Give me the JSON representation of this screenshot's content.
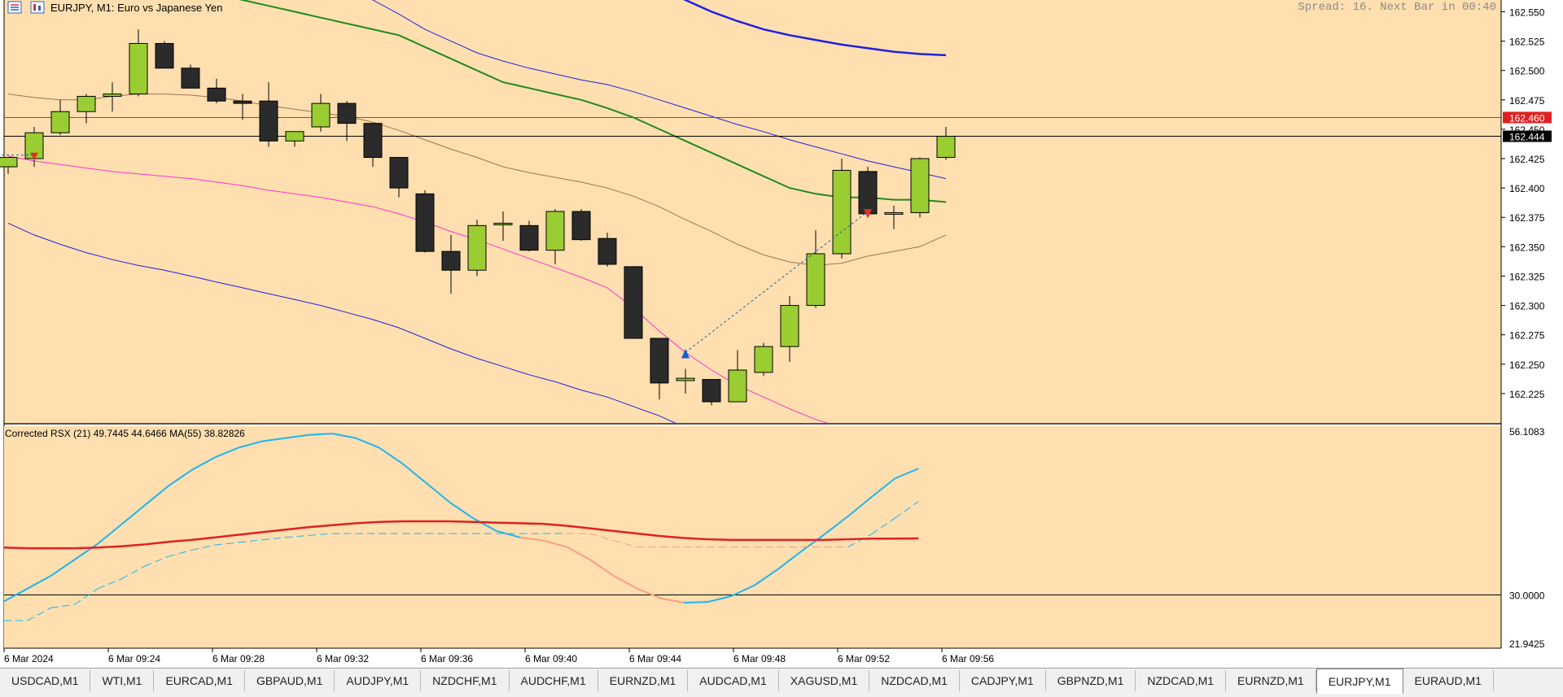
{
  "header": {
    "symbol_title": "EURJPY, M1:  Euro vs Japanese Yen",
    "spread_text": "Spread: 16. Next Bar in 00:40"
  },
  "colors": {
    "background": "#ffdfaf",
    "bull_candle": "#9acd32",
    "bear_candle": "#2b2b2b",
    "brown_ma": "#9b7653",
    "green_ma": "#1f8a1f",
    "blue_band": "#2020e0",
    "magenta_ma": "#ff33cc",
    "rsx_line": "#1eb4f0",
    "rsx_ma": "#e02020",
    "bid_marker": "#e02020"
  },
  "main_panel": {
    "price_min": 162.2,
    "price_max": 162.56,
    "y_ticks": [
      "162.550",
      "162.525",
      "162.500",
      "162.475",
      "162.450",
      "162.425",
      "162.400",
      "162.375",
      "162.350",
      "162.325",
      "162.300",
      "162.275",
      "162.250",
      "162.225"
    ],
    "bid_label": "162.460",
    "last_label": "162.444",
    "bid_value": 162.46,
    "last_value": 162.444
  },
  "indicator_panel": {
    "title": "Corrected RSX (21) 49.7445 44.6466 MA(55) 38.82826",
    "max_label": "56.1083",
    "min_label": "21.9425",
    "level_label": "30.0000",
    "max_value": 56.1083,
    "min_value": 21.9425,
    "level_value": 30.0
  },
  "time_axis": {
    "labels": [
      "6 Mar 2024",
      "6 Mar 09:24",
      "6 Mar 09:28",
      "6 Mar 09:32",
      "6 Mar 09:36",
      "6 Mar 09:40",
      "6 Mar 09:44",
      "6 Mar 09:48",
      "6 Mar 09:52",
      "6 Mar 09:56"
    ]
  },
  "chart_data": {
    "type": "candlestick",
    "candles": [
      {
        "o": 162.418,
        "h": 162.425,
        "l": 162.412,
        "c": 162.426
      },
      {
        "o": 162.425,
        "h": 162.452,
        "l": 162.418,
        "c": 162.447
      },
      {
        "o": 162.447,
        "h": 162.475,
        "l": 162.445,
        "c": 162.465
      },
      {
        "o": 162.465,
        "h": 162.48,
        "l": 162.455,
        "c": 162.478
      },
      {
        "o": 162.478,
        "h": 162.49,
        "l": 162.465,
        "c": 162.48
      },
      {
        "o": 162.48,
        "h": 162.535,
        "l": 162.478,
        "c": 162.523
      },
      {
        "o": 162.523,
        "h": 162.525,
        "l": 162.502,
        "c": 162.502
      },
      {
        "o": 162.502,
        "h": 162.505,
        "l": 162.485,
        "c": 162.485
      },
      {
        "o": 162.485,
        "h": 162.493,
        "l": 162.472,
        "c": 162.474
      },
      {
        "o": 162.474,
        "h": 162.48,
        "l": 162.458,
        "c": 162.472
      },
      {
        "o": 162.474,
        "h": 162.49,
        "l": 162.435,
        "c": 162.44
      },
      {
        "o": 162.44,
        "h": 162.448,
        "l": 162.435,
        "c": 162.448
      },
      {
        "o": 162.452,
        "h": 162.48,
        "l": 162.448,
        "c": 162.472
      },
      {
        "o": 162.472,
        "h": 162.474,
        "l": 162.44,
        "c": 162.455
      },
      {
        "o": 162.455,
        "h": 162.455,
        "l": 162.418,
        "c": 162.426
      },
      {
        "o": 162.426,
        "h": 162.426,
        "l": 162.392,
        "c": 162.4
      },
      {
        "o": 162.395,
        "h": 162.398,
        "l": 162.345,
        "c": 162.346
      },
      {
        "o": 162.346,
        "h": 162.36,
        "l": 162.31,
        "c": 162.33
      },
      {
        "o": 162.33,
        "h": 162.373,
        "l": 162.325,
        "c": 162.368
      },
      {
        "o": 162.37,
        "h": 162.38,
        "l": 162.355,
        "c": 162.37
      },
      {
        "o": 162.368,
        "h": 162.372,
        "l": 162.346,
        "c": 162.347
      },
      {
        "o": 162.347,
        "h": 162.382,
        "l": 162.335,
        "c": 162.38
      },
      {
        "o": 162.38,
        "h": 162.382,
        "l": 162.355,
        "c": 162.356
      },
      {
        "o": 162.357,
        "h": 162.362,
        "l": 162.333,
        "c": 162.335
      },
      {
        "o": 162.333,
        "h": 162.333,
        "l": 162.272,
        "c": 162.272
      },
      {
        "o": 162.272,
        "h": 162.272,
        "l": 162.22,
        "c": 162.234
      },
      {
        "o": 162.236,
        "h": 162.246,
        "l": 162.225,
        "c": 162.238
      },
      {
        "o": 162.237,
        "h": 162.237,
        "l": 162.215,
        "c": 162.218
      },
      {
        "o": 162.218,
        "h": 162.262,
        "l": 162.218,
        "c": 162.245
      },
      {
        "o": 162.243,
        "h": 162.268,
        "l": 162.24,
        "c": 162.265
      },
      {
        "o": 162.265,
        "h": 162.308,
        "l": 162.252,
        "c": 162.3
      },
      {
        "o": 162.3,
        "h": 162.364,
        "l": 162.298,
        "c": 162.344
      },
      {
        "o": 162.344,
        "h": 162.425,
        "l": 162.34,
        "c": 162.415
      },
      {
        "o": 162.414,
        "h": 162.418,
        "l": 162.378,
        "c": 162.378
      },
      {
        "o": 162.378,
        "h": 162.385,
        "l": 162.365,
        "c": 162.379
      },
      {
        "o": 162.379,
        "h": 162.426,
        "l": 162.375,
        "c": 162.425
      },
      {
        "o": 162.426,
        "h": 162.452,
        "l": 162.424,
        "c": 162.444
      }
    ],
    "ma_brown": [
      162.48,
      162.477,
      162.475,
      162.475,
      162.478,
      162.48,
      162.48,
      162.479,
      162.477,
      162.474,
      162.47,
      162.467,
      162.464,
      162.461,
      162.456,
      162.449,
      162.441,
      162.433,
      162.426,
      162.418,
      162.413,
      162.409,
      162.405,
      162.4,
      162.393,
      162.384,
      162.373,
      162.363,
      162.352,
      162.343,
      162.337,
      162.334,
      162.336,
      162.342,
      162.346,
      162.35,
      162.36
    ],
    "ma_green": [
      162.64,
      162.63,
      162.62,
      162.61,
      162.6,
      162.59,
      162.58,
      162.57,
      162.565,
      162.56,
      162.555,
      162.55,
      162.545,
      162.54,
      162.535,
      162.53,
      162.52,
      162.51,
      162.5,
      162.49,
      162.485,
      162.48,
      162.475,
      162.468,
      162.46,
      162.45,
      162.44,
      162.43,
      162.42,
      162.41,
      162.4,
      162.395,
      162.392,
      162.392,
      162.39,
      162.39,
      162.388
    ],
    "band_blue_upper": [
      162.9,
      162.87,
      162.84,
      162.81,
      162.78,
      162.75,
      162.72,
      162.69,
      162.67,
      162.65,
      162.63,
      162.61,
      162.59,
      162.575,
      162.56,
      162.548,
      162.535,
      162.525,
      162.515,
      162.508,
      162.502,
      162.497,
      162.492,
      162.488,
      162.482,
      162.475,
      162.468,
      162.461,
      162.454,
      162.448,
      162.441,
      162.435,
      162.429,
      162.423,
      162.418,
      162.413,
      162.408
    ],
    "band_blue_lower": [
      162.37,
      162.36,
      162.352,
      162.345,
      162.339,
      162.334,
      162.33,
      162.325,
      162.32,
      162.315,
      162.31,
      162.305,
      162.3,
      162.294,
      162.288,
      162.281,
      162.272,
      162.263,
      162.255,
      162.248,
      162.241,
      162.235,
      162.228,
      162.222,
      162.214,
      162.206,
      162.196,
      162.185,
      162.175,
      162.165,
      162.155,
      162.145,
      162.135,
      162.125,
      162.115,
      162.105,
      162.095
    ],
    "band_blue_thick": [
      162.6,
      162.6,
      162.6,
      162.6,
      162.6,
      162.6,
      162.6,
      162.6,
      162.6,
      162.6,
      162.6,
      162.6,
      162.6,
      162.6,
      162.6,
      162.6,
      162.6,
      162.6,
      162.6,
      162.6,
      162.6,
      162.6,
      162.6,
      162.6,
      162.6,
      162.57,
      162.56,
      162.55,
      162.542,
      162.535,
      162.53,
      162.526,
      162.522,
      162.519,
      162.516,
      162.514,
      162.513
    ],
    "ma_magenta": [
      162.427,
      162.423,
      162.42,
      162.417,
      162.414,
      162.412,
      162.41,
      162.408,
      162.405,
      162.402,
      162.398,
      162.395,
      162.392,
      162.388,
      162.384,
      162.378,
      162.371,
      162.363,
      162.356,
      162.348,
      162.34,
      162.332,
      162.324,
      162.315,
      162.298,
      162.278,
      162.26,
      162.245,
      162.232,
      162.222,
      162.212,
      162.203,
      162.196,
      162.19,
      162.186,
      162.182,
      162.18
    ],
    "rsx_values": [
      29,
      31,
      33,
      35.5,
      38,
      41,
      44,
      47,
      49.5,
      51.5,
      53,
      54,
      54.5,
      55,
      55.2,
      54.5,
      53,
      50.5,
      47.5,
      44.5,
      42,
      40,
      39,
      38.5,
      37.5,
      35.5,
      33,
      31,
      29.5,
      28.8,
      28.9,
      29.8,
      31.5,
      34,
      36.8,
      39.5,
      42.3,
      45.3,
      48.2,
      49.74
    ],
    "rsx_signal": [
      26,
      26,
      28,
      28.5,
      31,
      32.5,
      34.5,
      36,
      37,
      37.8,
      38.2,
      38.6,
      39,
      39.3,
      39.6,
      39.6,
      39.6,
      39.6,
      39.6,
      39.6,
      39.6,
      39.6,
      39.6,
      39.6,
      39.6,
      39.6,
      38.5,
      37.5,
      37.5,
      37.5,
      37.5,
      37.5,
      37.5,
      37.5,
      37.5,
      37.5,
      37.5,
      39.5,
      42,
      44.6
    ],
    "rsx_ma": [
      37.4,
      37.3,
      37.3,
      37.3,
      37.4,
      37.6,
      37.9,
      38.3,
      38.6,
      39,
      39.4,
      39.8,
      40.2,
      40.6,
      40.9,
      41.2,
      41.4,
      41.5,
      41.5,
      41.5,
      41.4,
      41.3,
      41.2,
      41.1,
      40.8,
      40.4,
      40,
      39.6,
      39.2,
      38.9,
      38.7,
      38.6,
      38.6,
      38.6,
      38.6,
      38.6,
      38.7,
      38.8,
      38.8,
      38.83
    ]
  },
  "tabs": [
    {
      "label": "USDCAD,M1",
      "active": false
    },
    {
      "label": "WTI,M1",
      "active": false
    },
    {
      "label": "EURCAD,M1",
      "active": false
    },
    {
      "label": "GBPAUD,M1",
      "active": false
    },
    {
      "label": "AUDJPY,M1",
      "active": false
    },
    {
      "label": "NZDCHF,M1",
      "active": false
    },
    {
      "label": "AUDCHF,M1",
      "active": false
    },
    {
      "label": "EURNZD,M1",
      "active": false
    },
    {
      "label": "AUDCAD,M1",
      "active": false
    },
    {
      "label": "XAGUSD,M1",
      "active": false
    },
    {
      "label": "NZDCAD,M1",
      "active": false
    },
    {
      "label": "CADJPY,M1",
      "active": false
    },
    {
      "label": "GBPNZD,M1",
      "active": false
    },
    {
      "label": "NZDCAD,M1",
      "active": false
    },
    {
      "label": "EURNZD,M1",
      "active": false
    },
    {
      "label": "EURJPY,M1",
      "active": true
    },
    {
      "label": "EURAUD,M1",
      "active": false
    }
  ]
}
